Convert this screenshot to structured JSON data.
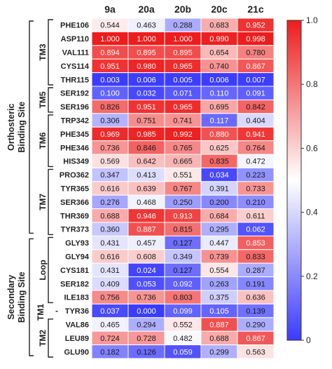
{
  "chart_data": {
    "type": "heatmap",
    "columns": [
      "9a",
      "20a",
      "20b",
      "20c",
      "21c"
    ],
    "rows": [
      "PHE106",
      "ASP110",
      "VAL111",
      "CYS114",
      "THR115",
      "SER192",
      "SER196",
      "TRP342",
      "PHE345",
      "PHE346",
      "HIS349",
      "PRO362",
      "TYR365",
      "SER366",
      "THR369",
      "TYR373",
      "GLY93",
      "GLY94",
      "CYS181",
      "SER182",
      "ILE183",
      "TYR36",
      "VAL86",
      "LEU89",
      "GLU90"
    ],
    "values": [
      [
        "0.544",
        "0.463",
        "0.288",
        "0.683",
        "0.952"
      ],
      [
        "1.000",
        "1.000",
        "1.000",
        "0.990",
        "0.998"
      ],
      [
        "0.894",
        "0.895",
        "0.895",
        "0.654",
        "0.780"
      ],
      [
        "0.951",
        "0.980",
        "0.965",
        "0.740",
        "0.867"
      ],
      [
        "0.003",
        "0.006",
        "0.005",
        "0.006",
        "0.007"
      ],
      [
        "0.100",
        "0.032",
        "0.071",
        "0.110",
        "0.091"
      ],
      [
        "0.826",
        "0.951",
        "0.965",
        "0.695",
        "0.842"
      ],
      [
        "0.306",
        "0.751",
        "0.741",
        "0.117",
        "0.404"
      ],
      [
        "0.969",
        "0.985",
        "0.992",
        "0.880",
        "0.941"
      ],
      [
        "0.736",
        "0.846",
        "0.765",
        "0.625",
        "0.764"
      ],
      [
        "0.569",
        "0.642",
        "0.665",
        "0.835",
        "0.472"
      ],
      [
        "0.347",
        "0.413",
        "0.551",
        "0.034",
        "0.223"
      ],
      [
        "0.616",
        "0.639",
        "0.767",
        "0.391",
        "0.733"
      ],
      [
        "0.276",
        "0.468",
        "0.250",
        "0.200",
        "0.210"
      ],
      [
        "0.688",
        "0.946",
        "0.913",
        "0.684",
        "0.611"
      ],
      [
        "0.360",
        "0.887",
        "0.815",
        "0.295",
        "0.062"
      ],
      [
        "0.431",
        "0.457",
        "0.127",
        "0.447",
        "0.853"
      ],
      [
        "0.616",
        "0.608",
        "0.349",
        "0.739",
        "0.833"
      ],
      [
        "0.431",
        "0.024",
        "0.127",
        "0.554",
        "0.287"
      ],
      [
        "0.409",
        "0.053",
        "0.092",
        "0.263",
        "0.191"
      ],
      [
        "0.756",
        "0.736",
        "0.803",
        "0.375",
        "0.636"
      ],
      [
        "0.037",
        "0.000",
        "0.099",
        "0.105",
        "0.139"
      ],
      [
        "0.465",
        "0.294",
        "0.552",
        "0.887",
        "0.290"
      ],
      [
        "0.724",
        "0.728",
        "0.482",
        "0.688",
        "0.867"
      ],
      [
        "0.182",
        "0.126",
        "0.059",
        "0.299",
        "0.563"
      ]
    ],
    "colorbar": {
      "min": 0,
      "max": 1,
      "ticks": [
        "0",
        "0.2",
        "0.4",
        "0.6",
        "0.8",
        "1.0"
      ],
      "low_color": "#3b3bff",
      "mid_color": "#ffffff",
      "high_color": "#ee1c1c"
    },
    "groups": [
      {
        "label": "Orthosteric",
        "label2": "Binding Site",
        "from": 0,
        "to": 15
      },
      {
        "label": "Secondary",
        "label2": "Binding Site",
        "from": 16,
        "to": 24
      }
    ],
    "subgroups": [
      {
        "label": "TM3",
        "from": 0,
        "to": 4
      },
      {
        "label": "TM5",
        "from": 5,
        "to": 6
      },
      {
        "label": "TM6",
        "from": 7,
        "to": 10
      },
      {
        "label": "TM7",
        "from": 11,
        "to": 15
      },
      {
        "label": "Loop",
        "from": 16,
        "to": 20
      },
      {
        "label": "TM1",
        "from": 21,
        "to": 21
      },
      {
        "label": "TM2",
        "from": 22,
        "to": 24
      }
    ],
    "dash_label": "-"
  }
}
